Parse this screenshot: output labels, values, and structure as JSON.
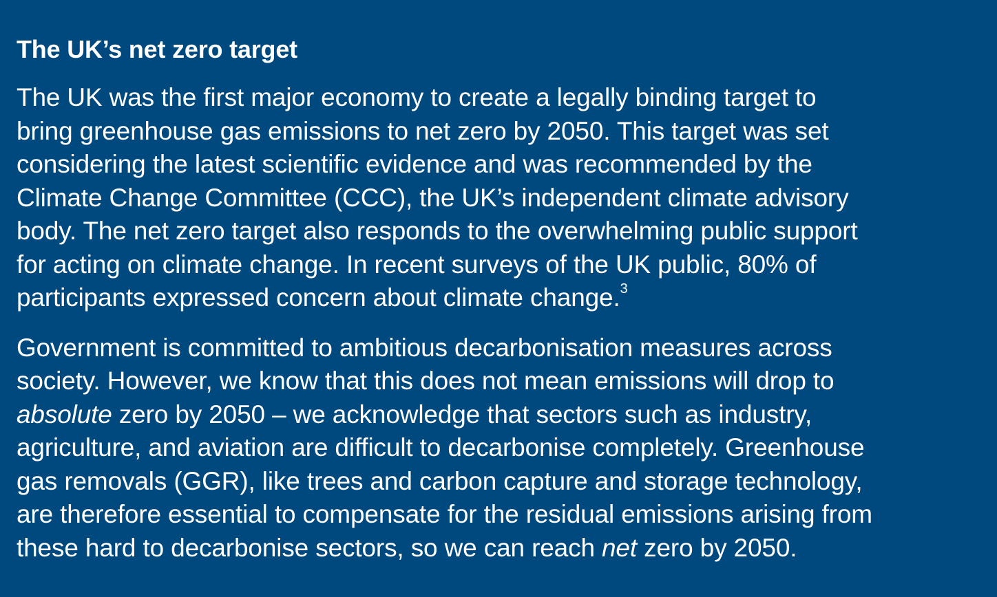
{
  "heading": "The UK’s net zero target",
  "paragraph1": {
    "lines": [
      "The UK was the first major economy to create a legally binding target to",
      "bring greenhouse gas emissions to net zero by 2050. This target was set",
      "considering the latest scientific evidence and was recommended by the",
      "Climate Change Committee (CCC), the UK’s independent climate advisory",
      "body. The net zero target also responds to the overwhelming public support",
      "for acting on climate change. In recent surveys of the UK public, 80% of",
      "participants expressed concern about climate change."
    ],
    "footnote": "3"
  },
  "paragraph2": {
    "line1": "Government is committed to ambitious decarbonisation measures across",
    "line2": "society. However, we know that this does not mean emissions will drop to",
    "line3_italic": "absolute",
    "line3_rest": " zero by 2050 – we acknowledge that sectors such as industry,",
    "line4": "agriculture, and aviation are difficult to decarbonise completely. Greenhouse",
    "line5": "gas removals (GGR), like trees and carbon capture and storage technology,",
    "line6": "are therefore essential to compensate for the residual emissions arising from",
    "line7_start": "these hard to decarbonise sectors, so we can reach ",
    "line7_italic": "net",
    "line7_end": " zero by 2050."
  }
}
